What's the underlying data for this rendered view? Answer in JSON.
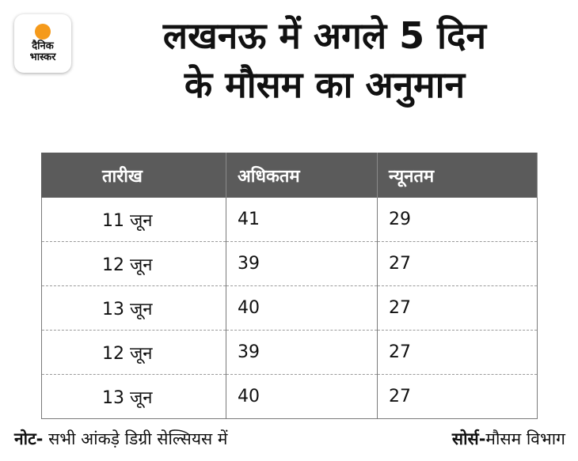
{
  "brand": {
    "logo_line1": "दैनिक",
    "logo_line2": "भास्कर",
    "sun_color": "#f59a1b"
  },
  "headline": {
    "line1": "लखनऊ में अगले 5 दिन",
    "line2": "के मौसम का अनुमान"
  },
  "table": {
    "headers": [
      "तारीख",
      "अधिकतम",
      "न्यूनतम"
    ],
    "header_bg": "#5b5b5b",
    "rows": [
      [
        "11 जून",
        "41",
        "29"
      ],
      [
        "12 जून",
        "39",
        "27"
      ],
      [
        "13 जून",
        "40",
        "27"
      ],
      [
        "12 जून",
        "39",
        "27"
      ],
      [
        "13 जून",
        "40",
        "27"
      ]
    ]
  },
  "footer": {
    "note_label": "नोट-",
    "note_text": " सभी आंकड़े डिग्री सेल्सियस में",
    "source_label": "सोर्स-",
    "source_text": "मौसम विभाग"
  }
}
